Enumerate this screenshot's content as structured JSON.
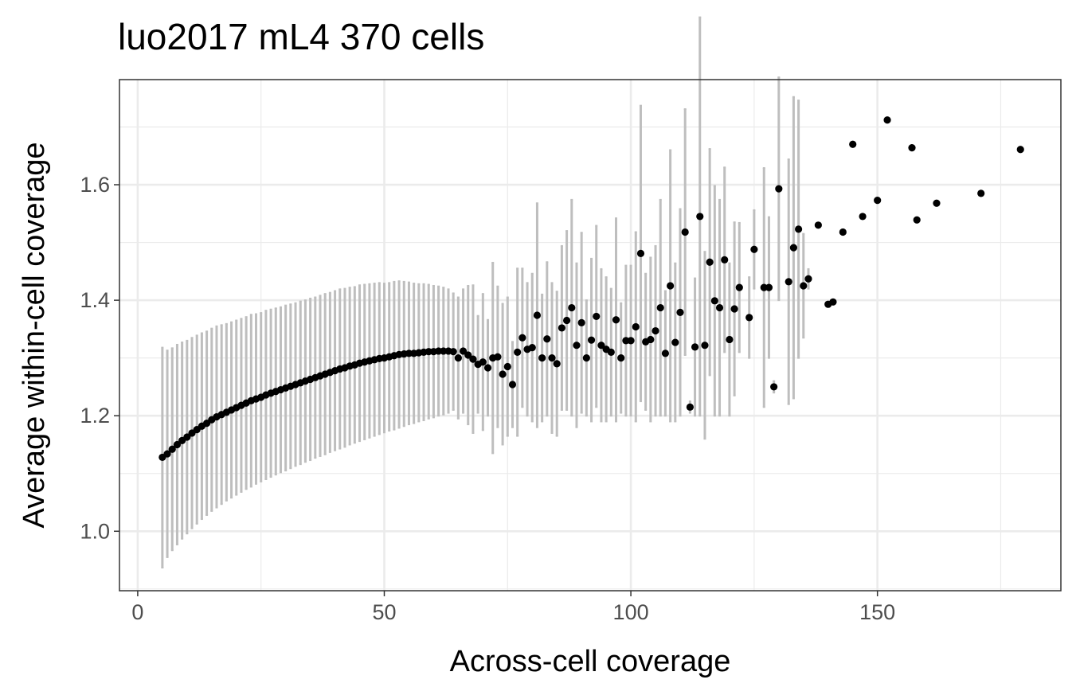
{
  "chart_data": {
    "type": "scatter",
    "title": "luo2017 mL4 370 cells",
    "xlabel": "Across-cell coverage",
    "ylabel": "Average within-cell coverage",
    "xlim": [
      -3.7,
      187.2
    ],
    "ylim": [
      0.897,
      1.782
    ],
    "x_ticks": [
      0,
      50,
      100,
      150
    ],
    "x_tick_labels": [
      "0",
      "50",
      "100",
      "150"
    ],
    "y_ticks": [
      1.0,
      1.2,
      1.4,
      1.6
    ],
    "y_tick_labels": [
      "1.0",
      "1.2",
      "1.4",
      "1.6"
    ],
    "grid": true,
    "colors": {
      "points": "#000000",
      "error_bars": "#bebebe",
      "grid": "#ebebeb",
      "panel_border": "#333333"
    },
    "series": [
      {
        "x": [
          5,
          6,
          7,
          8,
          9,
          10,
          11,
          12,
          13,
          14,
          15,
          16,
          17,
          18,
          19,
          20,
          21,
          22,
          23,
          24,
          25,
          26,
          27,
          28,
          29,
          30,
          31,
          32,
          33,
          34,
          35,
          36,
          37,
          38,
          39,
          40,
          41,
          42,
          43,
          44,
          45,
          46,
          47,
          48,
          49,
          50,
          51,
          52,
          53,
          54,
          55,
          56,
          57,
          58,
          59,
          60,
          61,
          62,
          63,
          64,
          65,
          66,
          67,
          68,
          69,
          70,
          71,
          72,
          73,
          74,
          75,
          76,
          77,
          78,
          79,
          80,
          81,
          82,
          83,
          84,
          85,
          86,
          87,
          88,
          89,
          90,
          91,
          92,
          93,
          94,
          95,
          96,
          97,
          98,
          99,
          100,
          101,
          102,
          103,
          104,
          105,
          106,
          107,
          108,
          109,
          110,
          111,
          112,
          113,
          114,
          115,
          116,
          117,
          118,
          119,
          120,
          121,
          122,
          124,
          125,
          127,
          128,
          129,
          130,
          132,
          133,
          134,
          135,
          136,
          138,
          140,
          141,
          143,
          145,
          147,
          150,
          152,
          157,
          158,
          162,
          171,
          179
        ],
        "y": [
          1.128,
          1.134,
          1.142,
          1.15,
          1.157,
          1.163,
          1.17,
          1.176,
          1.182,
          1.187,
          1.193,
          1.198,
          1.202,
          1.206,
          1.21,
          1.214,
          1.218,
          1.222,
          1.226,
          1.229,
          1.232,
          1.236,
          1.239,
          1.242,
          1.245,
          1.248,
          1.251,
          1.254,
          1.257,
          1.26,
          1.263,
          1.266,
          1.269,
          1.272,
          1.275,
          1.278,
          1.281,
          1.283,
          1.286,
          1.288,
          1.291,
          1.293,
          1.295,
          1.297,
          1.299,
          1.3,
          1.302,
          1.304,
          1.306,
          1.307,
          1.308,
          1.308,
          1.309,
          1.31,
          1.311,
          1.311,
          1.312,
          1.312,
          1.312,
          1.311,
          1.3,
          1.312,
          1.305,
          1.298,
          1.289,
          1.293,
          1.283,
          1.3,
          1.302,
          1.272,
          1.285,
          1.254,
          1.31,
          1.335,
          1.315,
          1.318,
          1.374,
          1.3,
          1.333,
          1.3,
          1.29,
          1.352,
          1.365,
          1.387,
          1.322,
          1.361,
          1.3,
          1.331,
          1.372,
          1.322,
          1.315,
          1.31,
          1.366,
          1.3,
          1.33,
          1.33,
          1.354,
          1.481,
          1.328,
          1.332,
          1.347,
          1.387,
          1.308,
          1.425,
          1.327,
          1.379,
          1.518,
          1.215,
          1.319,
          1.545,
          1.322,
          1.466,
          1.399,
          1.387,
          1.47,
          1.332,
          1.385,
          1.422,
          1.37,
          1.488,
          1.422,
          1.422,
          1.25,
          1.593,
          1.432,
          1.491,
          1.523,
          1.425,
          1.437,
          1.53,
          1.393,
          1.397,
          1.518,
          1.67,
          1.545,
          1.573,
          1.712,
          1.664,
          1.539,
          1.568,
          1.585,
          1.661
        ],
        "y_low": [
          0.937,
          0.955,
          0.967,
          0.977,
          0.987,
          0.996,
          1.005,
          1.013,
          1.021,
          1.028,
          1.035,
          1.041,
          1.047,
          1.053,
          1.058,
          1.063,
          1.068,
          1.073,
          1.077,
          1.082,
          1.086,
          1.09,
          1.094,
          1.098,
          1.102,
          1.105,
          1.109,
          1.113,
          1.116,
          1.12,
          1.123,
          1.127,
          1.13,
          1.133,
          1.137,
          1.14,
          1.143,
          1.146,
          1.15,
          1.153,
          1.156,
          1.159,
          1.162,
          1.165,
          1.168,
          1.171,
          1.174,
          1.176,
          1.179,
          1.182,
          1.185,
          1.187,
          1.19,
          1.192,
          1.195,
          1.197,
          1.2,
          1.202,
          1.205,
          1.21,
          1.195,
          1.205,
          1.185,
          1.17,
          1.205,
          1.175,
          1.2,
          1.135,
          1.18,
          1.15,
          1.165,
          1.18,
          1.165,
          1.215,
          1.2,
          1.19,
          1.18,
          1.19,
          1.2,
          1.17,
          1.165,
          1.21,
          1.21,
          1.2,
          1.18,
          1.205,
          1.2,
          1.19,
          1.215,
          1.19,
          1.19,
          1.2,
          1.19,
          1.205,
          1.2,
          1.2,
          1.19,
          1.225,
          1.21,
          1.19,
          1.2,
          1.2,
          1.2,
          1.19,
          1.19,
          1.2,
          1.305,
          1.205,
          1.2,
          1.2,
          1.16,
          1.27,
          1.2,
          1.2,
          1.31,
          1.2,
          1.235,
          1.31,
          1.3,
          1.42,
          1.215,
          1.3,
          1.24,
          1.4,
          1.22,
          1.23,
          1.3,
          1.335,
          1.42,
          null,
          null,
          null,
          null,
          null,
          null,
          null,
          null,
          null,
          null,
          null,
          null,
          null
        ],
        "y_high": [
          1.318,
          1.313,
          1.317,
          1.323,
          1.327,
          1.33,
          1.335,
          1.339,
          1.343,
          1.346,
          1.351,
          1.355,
          1.357,
          1.359,
          1.362,
          1.365,
          1.368,
          1.371,
          1.375,
          1.376,
          1.378,
          1.382,
          1.384,
          1.386,
          1.388,
          1.391,
          1.393,
          1.395,
          1.398,
          1.4,
          1.403,
          1.405,
          1.408,
          1.411,
          1.413,
          1.416,
          1.419,
          1.42,
          1.422,
          1.423,
          1.426,
          1.427,
          1.428,
          1.429,
          1.43,
          1.429,
          1.43,
          1.432,
          1.433,
          1.432,
          1.431,
          1.429,
          1.428,
          1.428,
          1.427,
          1.425,
          1.424,
          1.422,
          1.419,
          1.412,
          1.405,
          1.419,
          1.425,
          1.426,
          1.373,
          1.411,
          1.366,
          1.465,
          1.424,
          1.394,
          1.405,
          1.328,
          1.455,
          1.455,
          1.43,
          1.446,
          1.568,
          1.41,
          1.466,
          1.43,
          1.415,
          1.494,
          1.52,
          1.574,
          1.464,
          1.517,
          1.4,
          1.472,
          1.529,
          1.454,
          1.44,
          1.42,
          1.542,
          1.395,
          1.46,
          1.46,
          1.518,
          1.737,
          1.446,
          1.474,
          1.494,
          1.574,
          1.416,
          1.66,
          1.464,
          1.558,
          1.731,
          1.225,
          1.438,
          1.89,
          1.484,
          1.662,
          1.598,
          1.574,
          1.63,
          1.464,
          1.535,
          1.534,
          1.44,
          1.556,
          1.629,
          1.544,
          1.26,
          1.786,
          1.644,
          1.752,
          1.746,
          1.515,
          1.454,
          null,
          null,
          null,
          null,
          null,
          null,
          null,
          null,
          null,
          null,
          null,
          null,
          null
        ]
      }
    ]
  }
}
